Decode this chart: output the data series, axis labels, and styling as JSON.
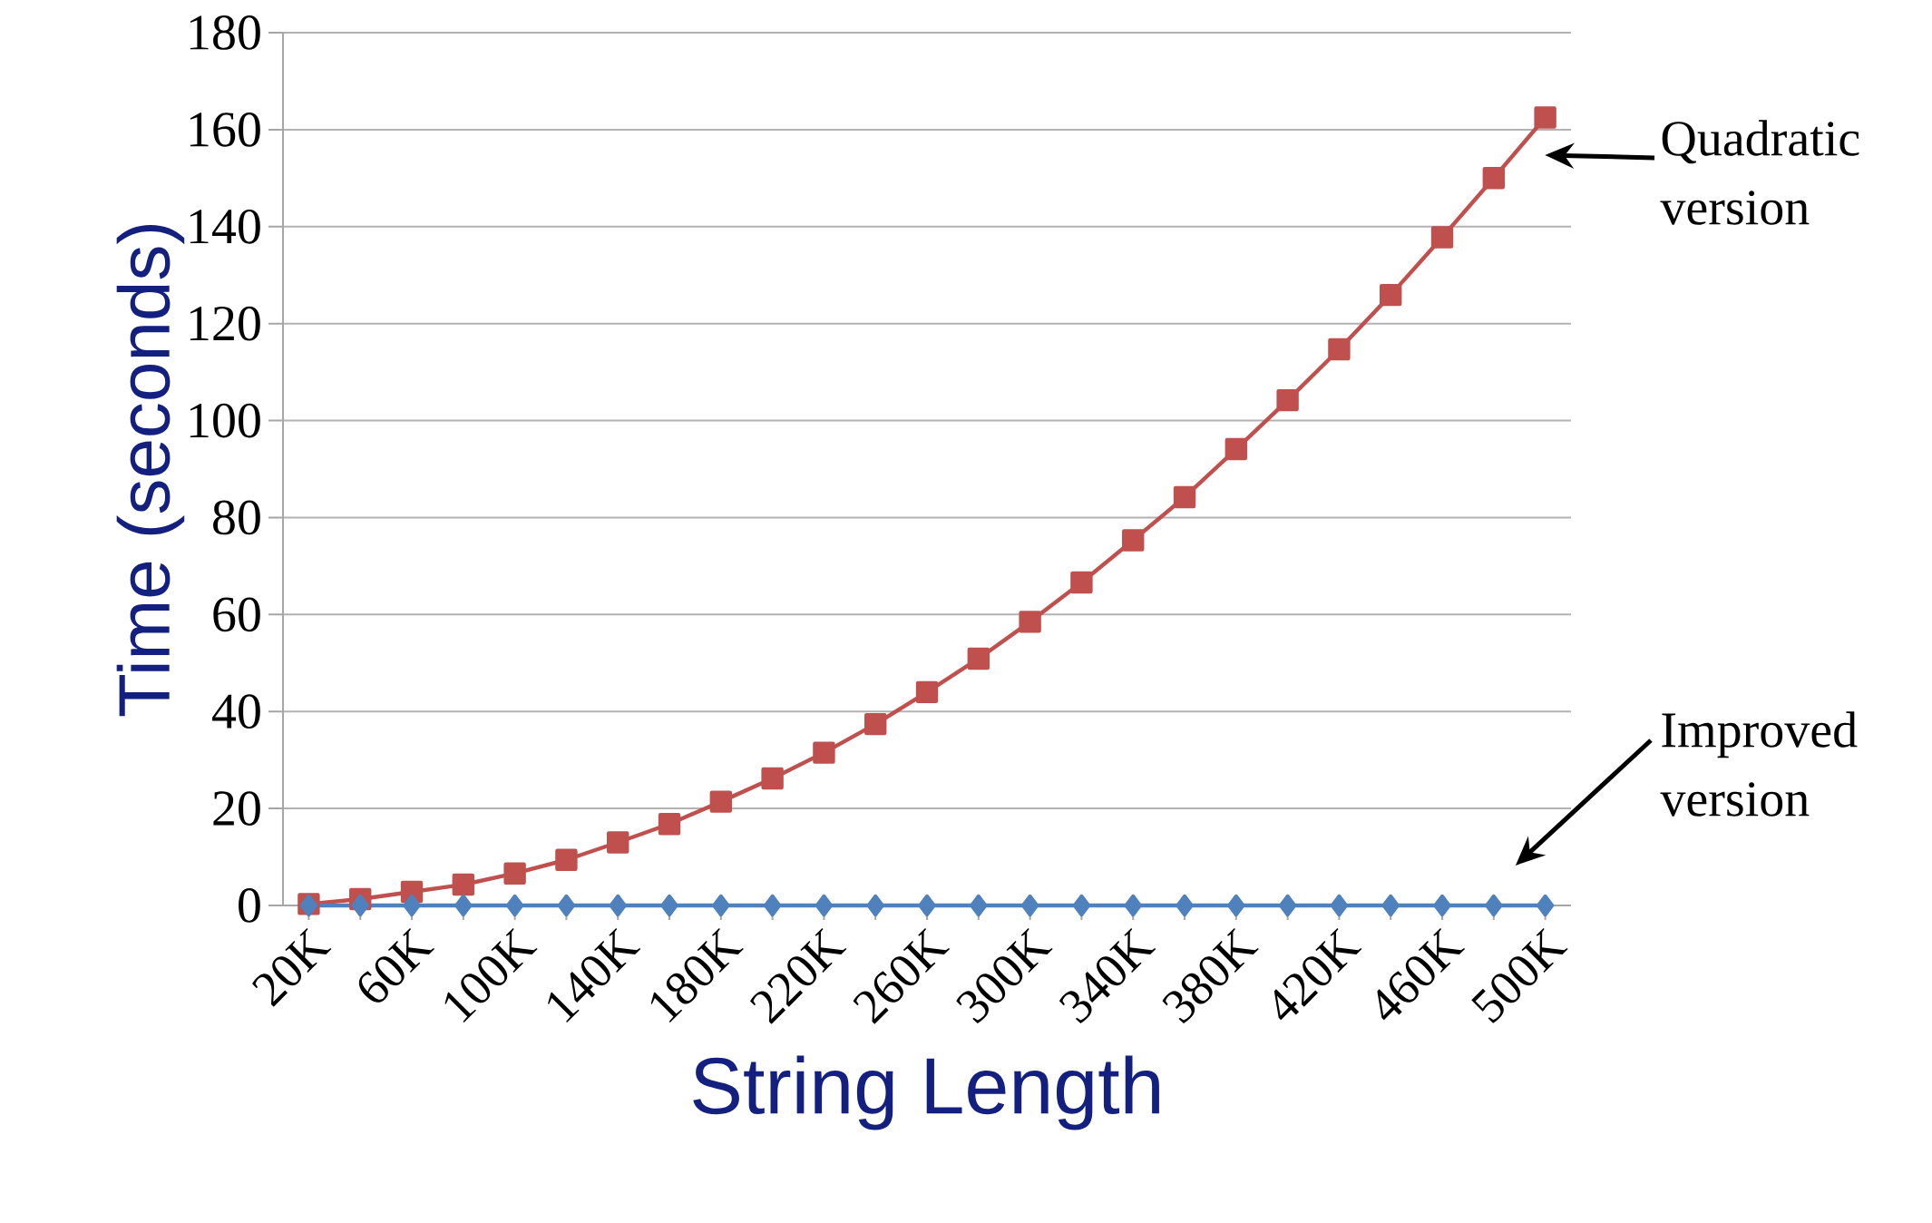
{
  "chart_data": {
    "type": "line",
    "xlabel": "String Length",
    "ylabel": "Time (seconds)",
    "categories": [
      "20K",
      null,
      "60K",
      null,
      "100K",
      null,
      "140K",
      null,
      "180K",
      null,
      "220K",
      null,
      "260K",
      null,
      "300K",
      null,
      "340K",
      null,
      "380K",
      null,
      "420K",
      null,
      "460K",
      null,
      "500K"
    ],
    "series": [
      {
        "color": "#4f81bd",
        "marker": "diamond",
        "values": [
          0,
          0,
          0,
          0,
          0,
          0,
          0,
          0,
          0,
          0,
          0,
          0,
          0,
          0,
          0,
          0,
          0,
          0,
          0,
          0,
          0,
          0,
          0,
          0,
          0
        ]
      },
      {
        "color": "#c0504d",
        "marker": "square",
        "values": [
          0.3,
          1.3,
          2.8,
          4.3,
          6.6,
          9.4,
          13,
          16.8,
          21.4,
          26.2,
          31.5,
          37.4,
          44,
          50.9,
          58.5,
          66.6,
          75.3,
          84.2,
          94.1,
          104.2,
          114.7,
          125.9,
          137.8,
          150,
          162.5
        ]
      }
    ],
    "ylim": [
      0,
      180
    ],
    "yticks": [
      0,
      20,
      40,
      60,
      80,
      100,
      120,
      140,
      160,
      180
    ],
    "grid": "y",
    "line_style": "solid",
    "annotations": [
      "Quadratic version",
      "Improved version"
    ]
  }
}
